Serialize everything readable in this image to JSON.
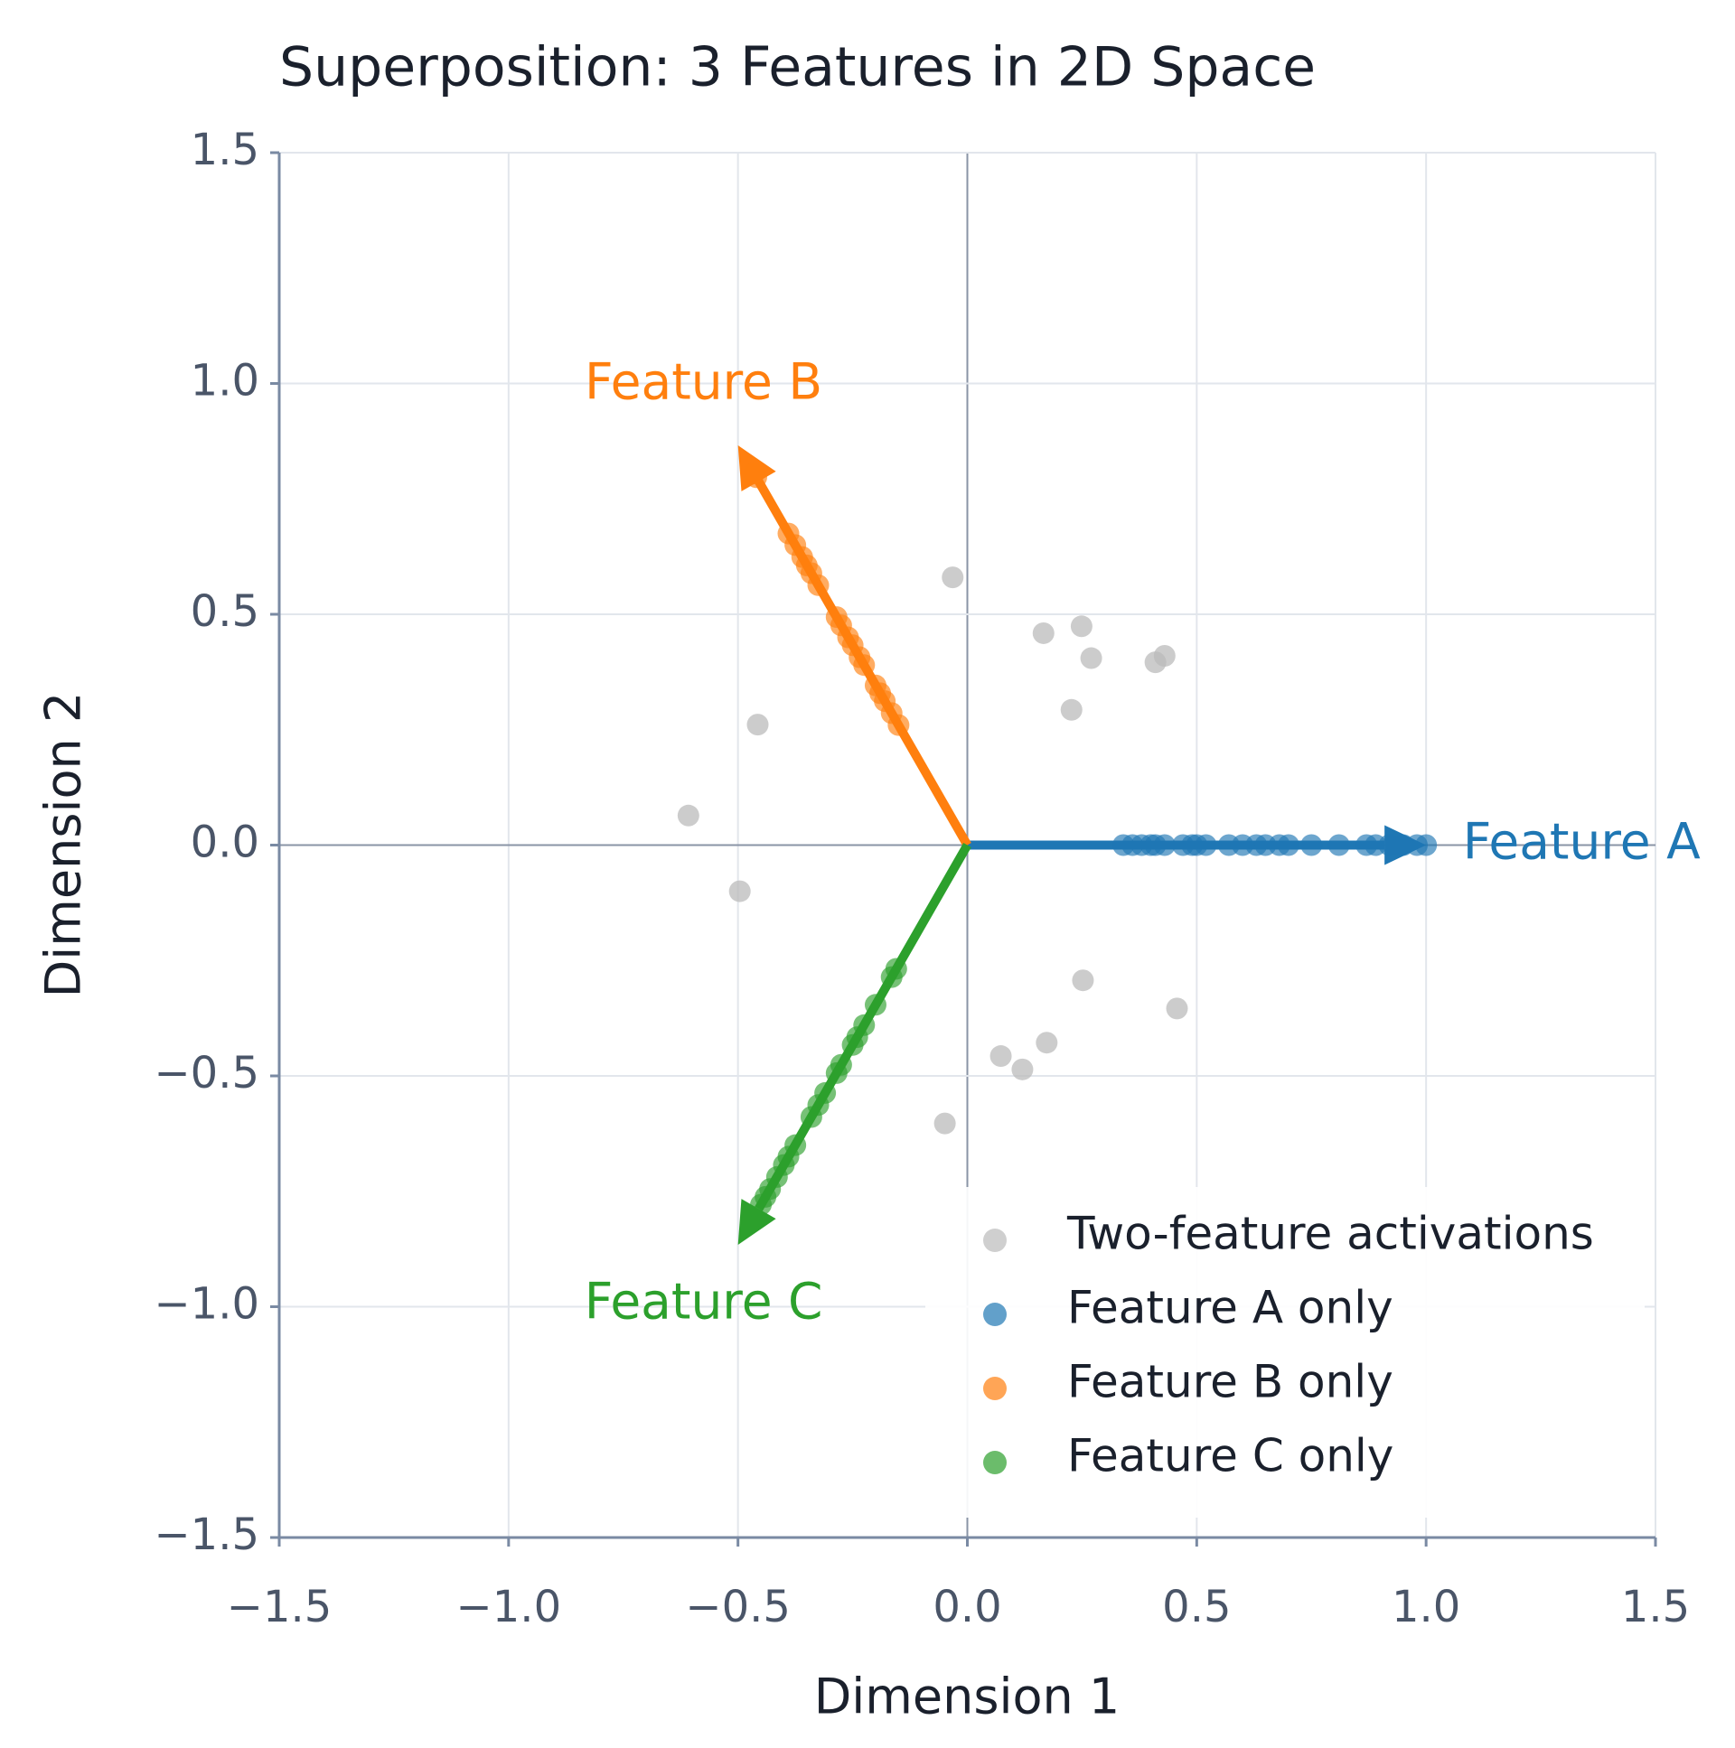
{
  "chart_data": {
    "type": "scatter",
    "title": "Superposition: 3 Features in 2D Space",
    "xlabel": "Dimension 1",
    "ylabel": "Dimension 2",
    "xlim": [
      -1.5,
      1.5
    ],
    "ylim": [
      -1.5,
      1.5
    ],
    "xticks": [
      {
        "value": -1.5,
        "label": "−1.5"
      },
      {
        "value": -1.0,
        "label": "−1.0"
      },
      {
        "value": -0.5,
        "label": "−0.5"
      },
      {
        "value": 0,
        "label": "0.0"
      },
      0.5,
      {
        "value": 1.0,
        "label": "1.0"
      },
      1.5
    ],
    "yticks": [
      {
        "value": -1.5,
        "label": "−1.5"
      },
      {
        "value": -1.0,
        "label": "−1.0"
      },
      {
        "value": -0.5,
        "label": "−0.5"
      },
      {
        "value": 0,
        "label": "0.0"
      },
      0.5,
      {
        "value": 1.0,
        "label": "1.0"
      },
      1.5
    ],
    "grid": true,
    "legend": "lower right",
    "series": [
      {
        "name": "Two-feature activations",
        "color": "#bbbbbb",
        "x": [
          -0.032,
          0.166,
          0.249,
          0.27,
          0.41,
          0.43,
          0.227,
          -0.457,
          -0.608,
          -0.496,
          0.252,
          0.457,
          0.173,
          0.073,
          0.12,
          -0.049
        ],
        "values": [
          0.58,
          0.459,
          0.474,
          0.405,
          0.396,
          0.41,
          0.293,
          0.261,
          0.064,
          -0.1,
          -0.293,
          -0.354,
          -0.428,
          -0.457,
          -0.486,
          -0.603
        ]
      },
      {
        "name": "Feature A only",
        "color": "#1f77b4",
        "x": [
          0.34,
          0.36,
          0.38,
          0.4,
          0.41,
          0.43,
          0.47,
          0.49,
          0.5,
          0.52,
          0.57,
          0.6,
          0.63,
          0.65,
          0.68,
          0.7,
          0.75,
          0.81,
          0.87,
          0.89,
          0.92,
          0.95,
          0.98,
          1.0
        ],
        "values": [
          0,
          0,
          0,
          0,
          0,
          0,
          0,
          0,
          0,
          0,
          0,
          0,
          0,
          0,
          0,
          0,
          0,
          0,
          0,
          0,
          0,
          0,
          0,
          0
        ]
      },
      {
        "name": "Feature B only",
        "color": "#ff7f0e",
        "x": [
          -0.15,
          -0.165,
          -0.18,
          -0.19,
          -0.2,
          -0.225,
          -0.235,
          -0.25,
          -0.26,
          -0.275,
          -0.285,
          -0.325,
          -0.34,
          -0.35,
          -0.36,
          -0.375,
          -0.39,
          -0.46,
          -0.465
        ],
        "values": [
          0.26,
          0.286,
          0.312,
          0.329,
          0.346,
          0.39,
          0.407,
          0.433,
          0.45,
          0.476,
          0.494,
          0.563,
          0.589,
          0.606,
          0.624,
          0.65,
          0.675,
          0.797,
          0.805
        ]
      },
      {
        "name": "Feature C only",
        "color": "#2ca02c",
        "x": [
          -0.155,
          -0.165,
          -0.2,
          -0.225,
          -0.24,
          -0.25,
          -0.275,
          -0.285,
          -0.31,
          -0.325,
          -0.34,
          -0.375,
          -0.39,
          -0.4,
          -0.415,
          -0.43,
          -0.44,
          -0.45
        ],
        "values": [
          -0.268,
          -0.286,
          -0.346,
          -0.39,
          -0.416,
          -0.433,
          -0.476,
          -0.494,
          -0.537,
          -0.563,
          -0.589,
          -0.65,
          -0.675,
          -0.693,
          -0.719,
          -0.745,
          -0.762,
          -0.779
        ]
      }
    ],
    "vectors": [
      {
        "label": "Feature A",
        "color": "#1f77b4",
        "x": 1.0,
        "y": 0
      },
      {
        "label": "Feature B",
        "color": "#ff7f0e",
        "x": -0.5,
        "y": 0.866
      },
      {
        "label": "Feature C",
        "color": "#2ca02c",
        "x": -0.5,
        "y": -0.866
      }
    ]
  }
}
